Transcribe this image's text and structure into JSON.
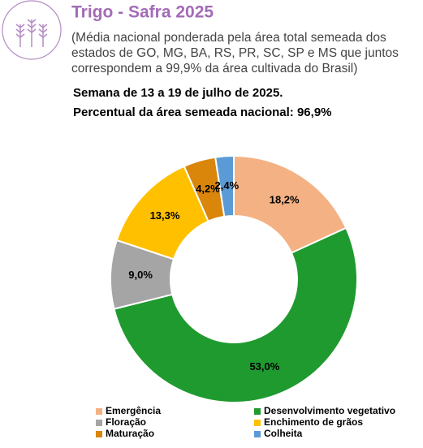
{
  "chart_data": {
    "type": "donut",
    "title": "Trigo - Safra 2025",
    "subtitle": "(Média nacional ponderada pela área total semeada dos estados de GO, MG, BA, RS, PR, SC, SP e MS que juntos correspondem a 99,9% da área cultivada do Brasil)",
    "week": "Semana de 13 a 19 de julho de 2025.",
    "note": "Percentual da área semeada nacional: 96,9%",
    "categories": [
      "Emergência",
      "Desenvolvimento vegetativo",
      "Floração",
      "Enchimento de grãos",
      "Maturação",
      "Colheita"
    ],
    "values": [
      18.2,
      53.0,
      9.0,
      13.3,
      4.2,
      2.4
    ],
    "value_labels": [
      "18,2%",
      "53,0%",
      "9,0%",
      "13,3%",
      "4,2%",
      "2,4%"
    ],
    "colors": [
      "#f4b183",
      "#1f9a2f",
      "#a5a5a5",
      "#ffc000",
      "#d9860b",
      "#5b9bd5"
    ],
    "legend": "bottom"
  }
}
